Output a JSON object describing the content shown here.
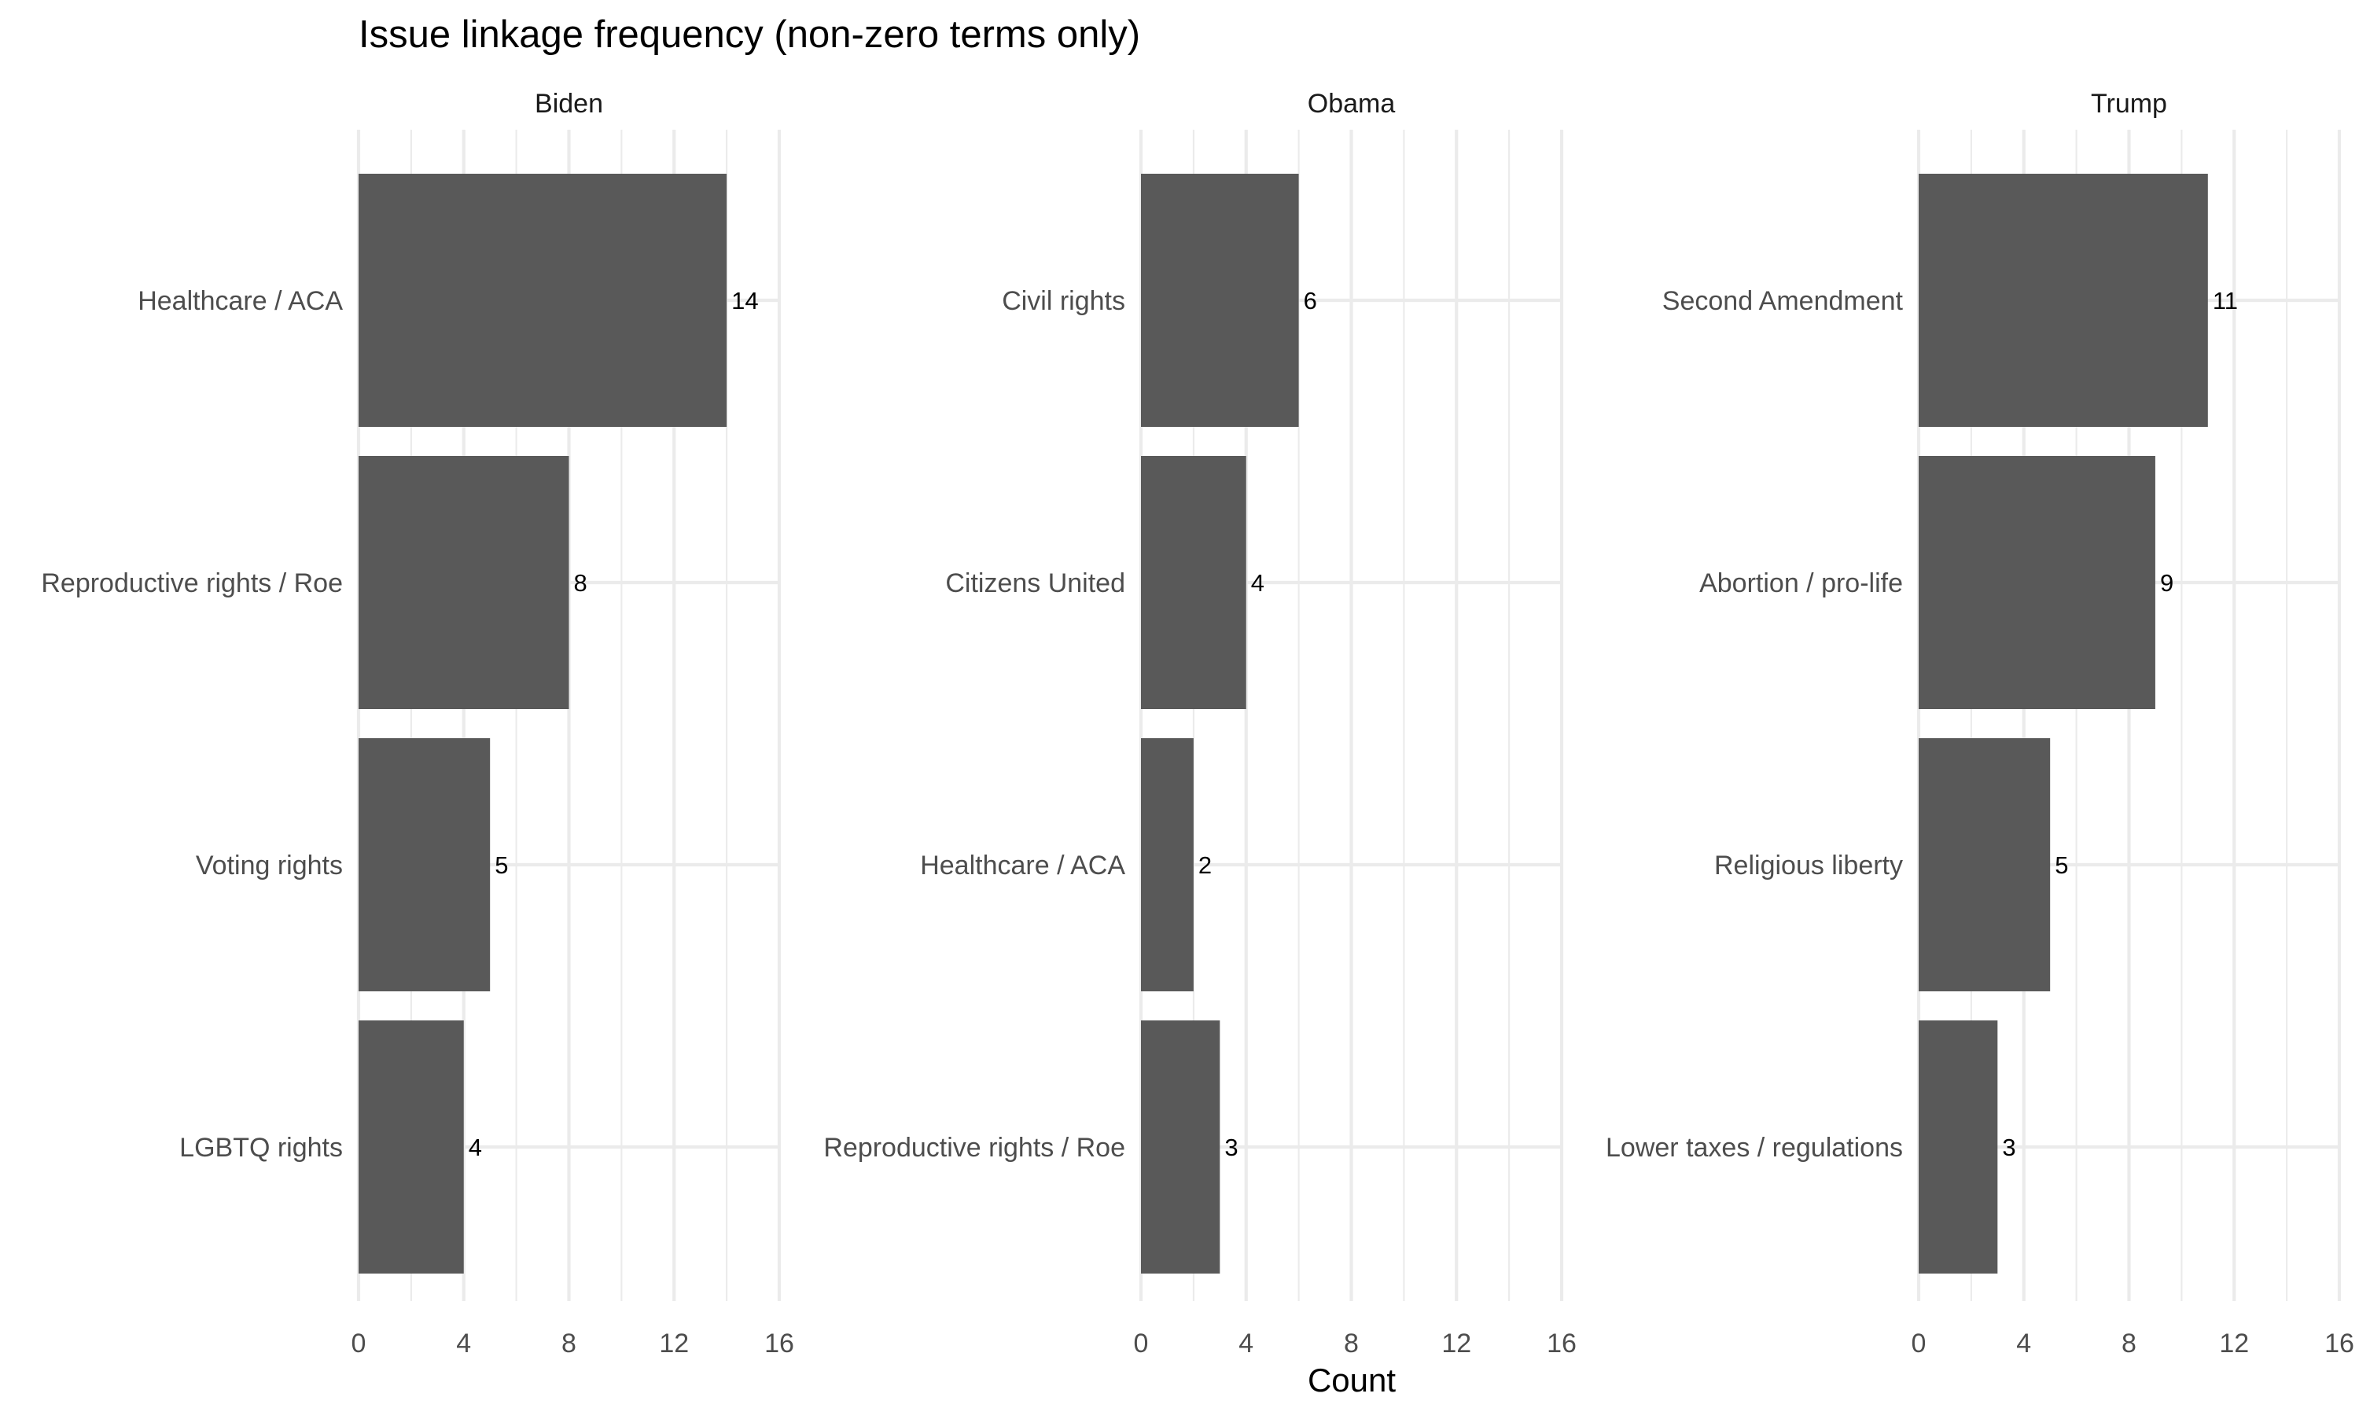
{
  "chart_data": {
    "type": "bar",
    "orientation": "horizontal",
    "title": "Issue linkage frequency (non-zero terms only)",
    "xlabel": "Count",
    "ylabel": "",
    "xlim": [
      0,
      16
    ],
    "xticks": [
      0,
      4,
      8,
      12,
      16
    ],
    "xtick_labels": [
      "0",
      "4",
      "8",
      "12",
      "16"
    ],
    "grid": true,
    "legend": "none",
    "bar_color": "#595959",
    "facets": [
      {
        "name": "Biden",
        "categories": [
          "Healthcare / ACA",
          "Reproductive rights / Roe",
          "Voting rights",
          "LGBTQ rights"
        ],
        "values": [
          14,
          8,
          5,
          4
        ],
        "value_labels": [
          "14",
          "8",
          "5",
          "4"
        ]
      },
      {
        "name": "Obama",
        "categories": [
          "Civil rights",
          "Citizens United",
          "Healthcare / ACA",
          "Reproductive rights / Roe"
        ],
        "values": [
          6,
          4,
          2,
          3
        ],
        "value_labels": [
          "6",
          "4",
          "2",
          "3"
        ]
      },
      {
        "name": "Trump",
        "categories": [
          "Second Amendment",
          "Abortion / pro-life",
          "Religious liberty",
          "Lower taxes / regulations"
        ],
        "values": [
          11,
          9,
          5,
          3
        ],
        "value_labels": [
          "11",
          "9",
          "5",
          "3"
        ]
      }
    ]
  }
}
